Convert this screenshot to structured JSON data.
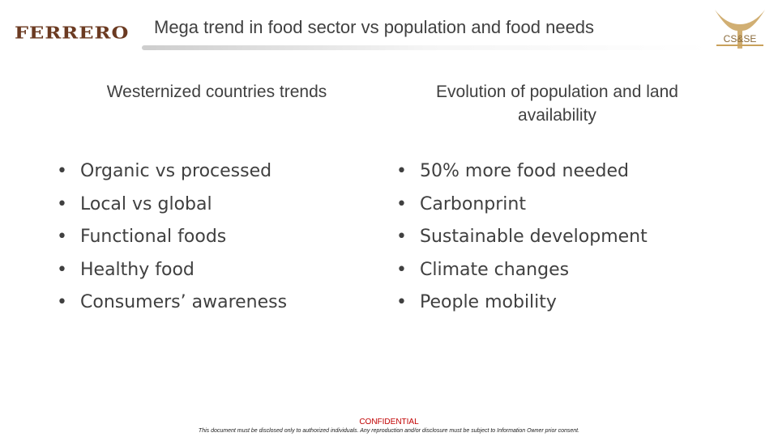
{
  "header": {
    "logo_text": "FERRERO",
    "title": "Mega trend in food sector vs population and food needs",
    "corner_logo_text": "CS&SE"
  },
  "left_column": {
    "heading": "Westernized countries trends",
    "items": [
      "Organic vs processed",
      "Local vs global",
      "Functional foods",
      "Healthy food",
      "Consumers’ awareness"
    ]
  },
  "right_column": {
    "heading": "Evolution of population and land availability",
    "items": [
      "50% more food needed",
      "Carbonprint",
      "Sustainable development",
      "Climate changes",
      "People mobility"
    ]
  },
  "footer": {
    "confidential": "CONFIDENTIAL",
    "disclaimer": "This document must be disclosed only to authorized individuals. Any reproduction and/or disclosure must be subject to Information Owner prior consent."
  },
  "colors": {
    "brand_brown": "#6b3a21",
    "gold": "#c9a15b",
    "text": "#404040",
    "confidential_red": "#c00000"
  }
}
